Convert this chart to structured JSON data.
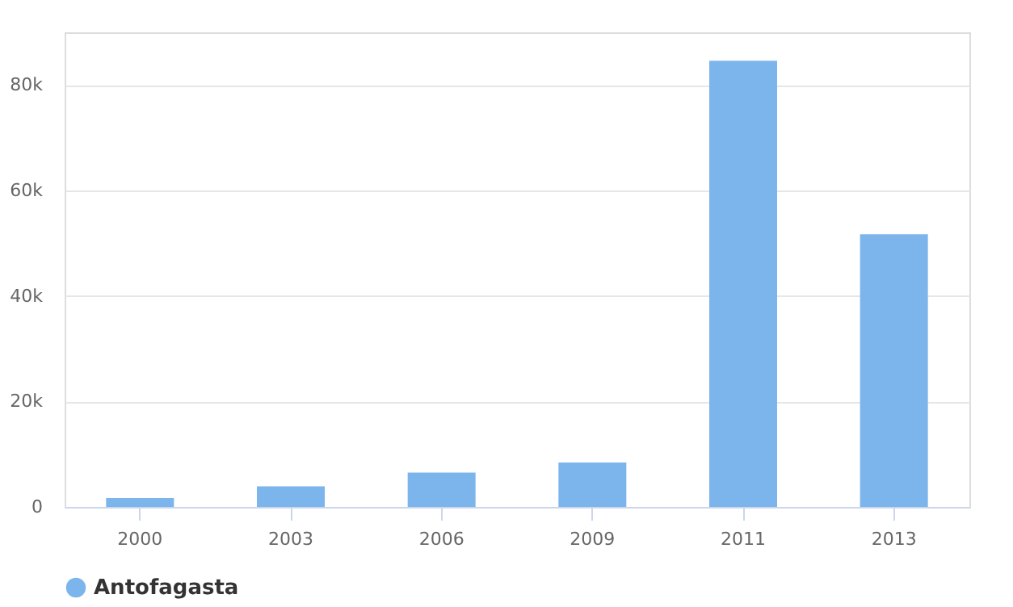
{
  "chart_data": {
    "type": "bar",
    "categories": [
      "2000",
      "2003",
      "2006",
      "2009",
      "2011",
      "2013"
    ],
    "series": [
      {
        "name": "Antofagasta",
        "color": "#7cb5ec",
        "values": [
          1700,
          3900,
          6500,
          8400,
          84600,
          51700
        ]
      }
    ],
    "ylim": [
      0,
      90000
    ],
    "yticks": [
      0,
      {
        "value": 20000,
        "label": "20k"
      },
      {
        "value": 40000,
        "label": "40k"
      },
      {
        "value": 60000,
        "label": "60k"
      },
      {
        "value": 80000,
        "label": "80k"
      }
    ],
    "grid": "y",
    "legend": "bottom"
  }
}
